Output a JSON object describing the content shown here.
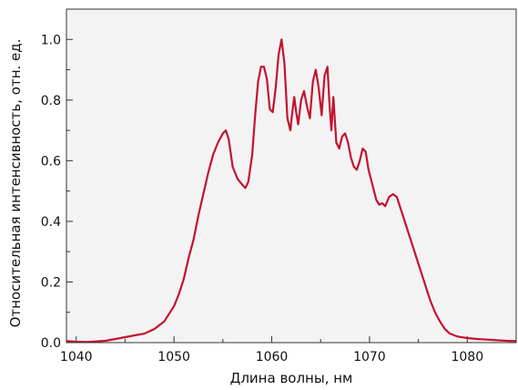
{
  "chart_data": {
    "type": "line",
    "title": "",
    "xlabel": "Длина волны, нм",
    "ylabel": "Относительная интенсивность, отн. ед.",
    "xlim": [
      1039,
      1085
    ],
    "ylim": [
      0,
      1.1
    ],
    "x_ticks": [
      1040,
      1050,
      1060,
      1070,
      1080
    ],
    "x_tick_labels": [
      "1040",
      "1050",
      "1060",
      "1070",
      "1080"
    ],
    "y_ticks": [
      0,
      0.2,
      0.4,
      0.6,
      0.8,
      1.0
    ],
    "y_tick_labels": [
      "0.0",
      "0.2",
      "0.4",
      "0.6",
      "0.8",
      "1.0"
    ],
    "grid": false,
    "background_color": "#f3f3f3",
    "series": [
      {
        "color": "#c4122f",
        "x": [
          1039,
          1040,
          1041,
          1042,
          1043,
          1044,
          1045,
          1046,
          1047,
          1048,
          1049,
          1050,
          1050.5,
          1051,
          1051.5,
          1052,
          1052.5,
          1053,
          1053.5,
          1054,
          1054.5,
          1055,
          1055.3,
          1055.6,
          1056,
          1056.5,
          1057,
          1057.3,
          1057.6,
          1058,
          1058.3,
          1058.6,
          1058.9,
          1059.2,
          1059.5,
          1059.8,
          1060.1,
          1060.4,
          1060.7,
          1061,
          1061.3,
          1061.6,
          1061.9,
          1062.1,
          1062.3,
          1062.5,
          1062.7,
          1063,
          1063.3,
          1063.6,
          1063.9,
          1064.2,
          1064.5,
          1064.8,
          1065.1,
          1065.4,
          1065.7,
          1065.9,
          1066.1,
          1066.3,
          1066.6,
          1066.9,
          1067.2,
          1067.5,
          1067.8,
          1068.1,
          1068.4,
          1068.7,
          1069,
          1069.3,
          1069.6,
          1069.9,
          1070.3,
          1070.7,
          1071,
          1071.3,
          1071.6,
          1072,
          1072.4,
          1072.8,
          1073.2,
          1073.7,
          1074.2,
          1074.7,
          1075.2,
          1075.7,
          1076.2,
          1076.7,
          1077.2,
          1077.7,
          1078.2,
          1079,
          1080,
          1081,
          1082,
          1083,
          1084,
          1085
        ],
        "y": [
          0.005,
          0.003,
          0.002,
          0.004,
          0.006,
          0.012,
          0.018,
          0.024,
          0.03,
          0.045,
          0.07,
          0.12,
          0.16,
          0.21,
          0.28,
          0.34,
          0.42,
          0.49,
          0.56,
          0.62,
          0.66,
          0.69,
          0.7,
          0.67,
          0.58,
          0.54,
          0.52,
          0.51,
          0.53,
          0.62,
          0.75,
          0.86,
          0.91,
          0.91,
          0.87,
          0.77,
          0.76,
          0.84,
          0.95,
          1.0,
          0.92,
          0.74,
          0.7,
          0.76,
          0.81,
          0.76,
          0.72,
          0.8,
          0.83,
          0.78,
          0.74,
          0.86,
          0.9,
          0.84,
          0.75,
          0.88,
          0.91,
          0.79,
          0.7,
          0.81,
          0.66,
          0.64,
          0.68,
          0.69,
          0.66,
          0.61,
          0.58,
          0.57,
          0.6,
          0.64,
          0.63,
          0.57,
          0.52,
          0.47,
          0.455,
          0.46,
          0.45,
          0.48,
          0.49,
          0.48,
          0.44,
          0.39,
          0.34,
          0.29,
          0.24,
          0.19,
          0.14,
          0.1,
          0.07,
          0.045,
          0.03,
          0.02,
          0.015,
          0.012,
          0.01,
          0.008,
          0.006,
          0.005
        ]
      }
    ]
  }
}
